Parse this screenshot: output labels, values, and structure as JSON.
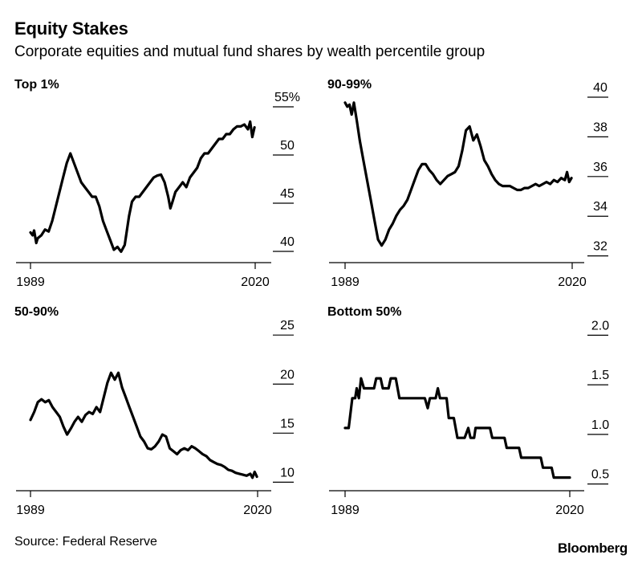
{
  "header": {
    "title": "Equity Stakes",
    "subtitle": "Corporate equities and mutual fund shares by wealth percentile group"
  },
  "footer": {
    "source": "Source: Federal Reserve",
    "brand": "Bloomberg"
  },
  "colors": {
    "line": "#000000",
    "background": "#ffffff"
  },
  "chart_data": [
    {
      "type": "line",
      "title": "Top 1%",
      "xlim": [
        1989,
        2020
      ],
      "xticks": [
        1989,
        2020
      ],
      "xtick_labels": [
        "1989",
        "2020"
      ],
      "ylim": [
        38.5,
        56
      ],
      "yticks": [
        40,
        45,
        50,
        55
      ],
      "ytick_labels": [
        "40",
        "45",
        "50",
        "55%"
      ],
      "series": [
        {
          "x": [
            1989.0,
            1989.3,
            1989.5,
            1989.8,
            1990.0,
            1990.5,
            1991.0,
            1991.5,
            1992.0,
            1992.5,
            1993.0,
            1993.5,
            1994.0,
            1994.5,
            1995.0,
            1995.5,
            1996.0,
            1996.5,
            1997.0,
            1997.5,
            1998.0,
            1998.5,
            1999.0,
            1999.5,
            2000.0,
            2000.5,
            2001.0,
            2001.5,
            2002.0,
            2002.3,
            2002.6,
            2003.0,
            2003.5,
            2004.0,
            2004.5,
            2005.0,
            2005.5,
            2006.0,
            2006.5,
            2007.0,
            2007.5,
            2008.0,
            2008.3,
            2008.6,
            2009.0,
            2009.5,
            2010.0,
            2010.5,
            2011.0,
            2011.5,
            2012.0,
            2012.5,
            2013.0,
            2013.5,
            2014.0,
            2014.5,
            2015.0,
            2015.5,
            2016.0,
            2016.5,
            2017.0,
            2017.5,
            2018.0,
            2018.5,
            2019.0,
            2019.3,
            2019.6,
            2019.9
          ],
          "y": [
            41.3,
            41.0,
            41.5,
            40.2,
            40.7,
            41.0,
            41.6,
            41.4,
            42.5,
            44.0,
            45.5,
            47.0,
            48.5,
            49.5,
            48.5,
            47.5,
            46.5,
            46.0,
            45.5,
            45.0,
            45.0,
            44.0,
            42.5,
            41.5,
            40.5,
            39.5,
            39.8,
            39.3,
            40.0,
            41.5,
            43.0,
            44.5,
            45.0,
            45.0,
            45.5,
            46.0,
            46.5,
            47.0,
            47.2,
            47.3,
            46.5,
            45.0,
            43.8,
            44.5,
            45.5,
            46.0,
            46.5,
            46.0,
            47.0,
            47.5,
            48.0,
            49.0,
            49.5,
            49.5,
            50.0,
            50.5,
            51.0,
            51.0,
            51.5,
            51.5,
            52.0,
            52.3,
            52.3,
            52.5,
            52.0,
            52.8,
            51.2,
            52.2
          ]
        }
      ]
    },
    {
      "type": "line",
      "title": "90-99%",
      "xlim": [
        1989,
        2020
      ],
      "xticks": [
        1989,
        2020
      ],
      "xtick_labels": [
        "1989",
        "2020"
      ],
      "ylim": [
        31.5,
        40
      ],
      "yticks": [
        32,
        34,
        36,
        38,
        40
      ],
      "ytick_labels": [
        "32",
        "34",
        "36",
        "38",
        "40"
      ],
      "series": [
        {
          "x": [
            1989.0,
            1989.3,
            1989.6,
            1989.9,
            1990.2,
            1990.6,
            1991.0,
            1991.5,
            1992.0,
            1992.5,
            1993.0,
            1993.5,
            1994.0,
            1994.5,
            1995.0,
            1995.5,
            1996.0,
            1996.5,
            1997.0,
            1997.5,
            1998.0,
            1998.5,
            1999.0,
            1999.5,
            2000.0,
            2000.5,
            2001.0,
            2001.5,
            2002.0,
            2002.5,
            2003.0,
            2003.5,
            2004.0,
            2004.5,
            2005.0,
            2005.5,
            2006.0,
            2006.5,
            2007.0,
            2007.5,
            2008.0,
            2008.5,
            2009.0,
            2009.5,
            2010.0,
            2010.5,
            2011.0,
            2011.5,
            2012.0,
            2012.5,
            2013.0,
            2013.5,
            2014.0,
            2014.5,
            2015.0,
            2015.5,
            2016.0,
            2016.5,
            2017.0,
            2017.5,
            2018.0,
            2018.5,
            2019.0,
            2019.3,
            2019.6,
            2019.9
          ],
          "y": [
            39.4,
            39.2,
            39.3,
            38.8,
            39.4,
            38.5,
            37.5,
            36.5,
            35.5,
            34.5,
            33.5,
            32.5,
            32.2,
            32.5,
            33.0,
            33.3,
            33.7,
            34.0,
            34.2,
            34.5,
            35.0,
            35.5,
            36.0,
            36.3,
            36.3,
            36.0,
            35.8,
            35.5,
            35.3,
            35.5,
            35.7,
            35.8,
            35.9,
            36.2,
            37.0,
            38.0,
            38.2,
            37.5,
            37.8,
            37.2,
            36.5,
            36.2,
            35.8,
            35.5,
            35.3,
            35.2,
            35.2,
            35.2,
            35.1,
            35.0,
            35.0,
            35.1,
            35.1,
            35.2,
            35.3,
            35.2,
            35.3,
            35.4,
            35.3,
            35.5,
            35.4,
            35.6,
            35.5,
            35.9,
            35.4,
            35.6
          ]
        }
      ]
    },
    {
      "type": "line",
      "title": "50-90%",
      "xlim": [
        1989,
        2020
      ],
      "xticks": [
        1989,
        2020
      ],
      "xtick_labels": [
        "1989",
        "2020"
      ],
      "ylim": [
        8.8,
        26
      ],
      "yticks": [
        10,
        15,
        20,
        25
      ],
      "ytick_labels": [
        "10",
        "15",
        "20",
        "25"
      ],
      "series": [
        {
          "x": [
            1989.0,
            1989.5,
            1990.0,
            1990.5,
            1991.0,
            1991.5,
            1992.0,
            1992.5,
            1993.0,
            1993.5,
            1994.0,
            1994.5,
            1995.0,
            1995.5,
            1996.0,
            1996.5,
            1997.0,
            1997.5,
            1998.0,
            1998.5,
            1999.0,
            1999.5,
            2000.0,
            2000.5,
            2001.0,
            2001.5,
            2002.0,
            2002.5,
            2003.0,
            2003.5,
            2004.0,
            2004.5,
            2005.0,
            2005.5,
            2006.0,
            2006.5,
            2007.0,
            2007.5,
            2008.0,
            2008.5,
            2009.0,
            2009.5,
            2010.0,
            2010.5,
            2011.0,
            2011.5,
            2012.0,
            2012.5,
            2013.0,
            2013.5,
            2014.0,
            2014.5,
            2015.0,
            2015.5,
            2016.0,
            2016.5,
            2017.0,
            2017.5,
            2018.0,
            2018.5,
            2019.0,
            2019.3,
            2019.6,
            2019.9
          ],
          "y": [
            15.7,
            16.5,
            17.5,
            17.8,
            17.5,
            17.7,
            17.0,
            16.5,
            16.0,
            15.0,
            14.2,
            14.8,
            15.5,
            16.0,
            15.5,
            16.2,
            16.5,
            16.3,
            17.0,
            16.5,
            18.0,
            19.5,
            20.5,
            19.8,
            20.5,
            19.0,
            18.0,
            17.0,
            16.0,
            15.0,
            14.0,
            13.5,
            12.8,
            12.7,
            13.0,
            13.5,
            14.2,
            14.0,
            12.8,
            12.5,
            12.2,
            12.6,
            12.8,
            12.6,
            13.0,
            12.8,
            12.5,
            12.2,
            12.0,
            11.6,
            11.4,
            11.2,
            11.1,
            10.9,
            10.6,
            10.5,
            10.3,
            10.2,
            10.1,
            10.0,
            10.2,
            9.8,
            10.4,
            9.9
          ]
        }
      ]
    },
    {
      "type": "line",
      "title": "Bottom 50%",
      "xlim": [
        1989,
        2020
      ],
      "xticks": [
        1989,
        2020
      ],
      "xtick_labels": [
        "1989",
        "2020"
      ],
      "ylim": [
        0.4,
        2.1
      ],
      "yticks": [
        0.5,
        1.0,
        1.5,
        2.0
      ],
      "ytick_labels": [
        "0.5",
        "1.0",
        "1.5",
        "2.0"
      ],
      "series": [
        {
          "x": [
            1989.0,
            1989.5,
            1990.0,
            1990.4,
            1990.6,
            1990.9,
            1991.2,
            1991.6,
            1992.0,
            1993.0,
            1993.3,
            1993.6,
            1993.9,
            1994.2,
            1995.0,
            1995.3,
            1996.0,
            1996.5,
            2000.0,
            2000.4,
            2000.7,
            2001.5,
            2001.8,
            2002.1,
            2003.0,
            2003.3,
            2004.0,
            2004.5,
            2005.5,
            2006.0,
            2006.3,
            2006.8,
            2007.0,
            2007.5,
            2009.0,
            2009.3,
            2011.0,
            2011.3,
            2013.0,
            2013.3,
            2016.0,
            2016.3,
            2017.5,
            2017.8,
            2020.0
          ],
          "y": [
            1.0,
            1.0,
            1.3,
            1.3,
            1.4,
            1.3,
            1.5,
            1.4,
            1.4,
            1.4,
            1.5,
            1.5,
            1.5,
            1.4,
            1.4,
            1.5,
            1.5,
            1.3,
            1.3,
            1.2,
            1.3,
            1.3,
            1.4,
            1.3,
            1.3,
            1.1,
            1.1,
            0.9,
            0.9,
            1.0,
            0.9,
            0.9,
            1.0,
            1.0,
            1.0,
            0.9,
            0.9,
            0.8,
            0.8,
            0.7,
            0.7,
            0.6,
            0.6,
            0.5,
            0.5
          ]
        }
      ]
    }
  ]
}
